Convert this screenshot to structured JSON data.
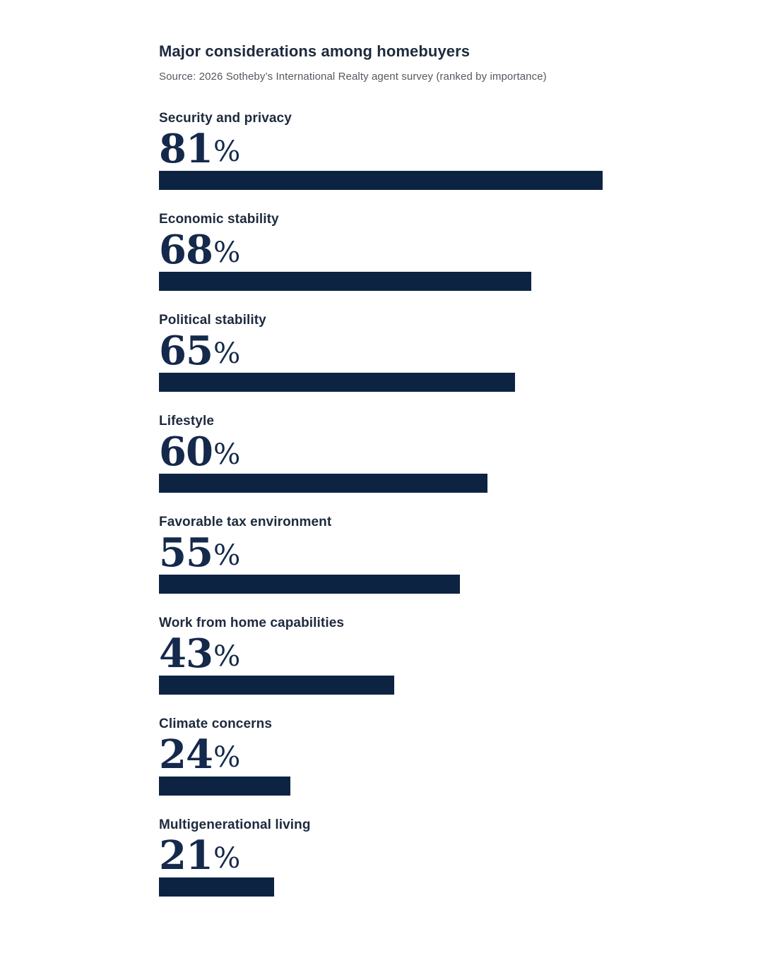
{
  "header": {
    "title": "Major considerations among homebuyers",
    "source": "Source: 2026 Sotheby’s International Realty agent survey (ranked by importance)"
  },
  "chart_data": {
    "type": "bar",
    "orientation": "horizontal",
    "title": "Major considerations among homebuyers",
    "subtitle": "Source: 2026 Sotheby’s International Realty agent survey (ranked by importance)",
    "categories": [
      "Security and privacy",
      "Economic stability",
      "Political stability",
      "Lifestyle",
      "Favorable tax environment",
      "Work from home capabilities",
      "Climate concerns",
      "Multigenerational living"
    ],
    "values": [
      81,
      68,
      65,
      60,
      55,
      43,
      24,
      21
    ],
    "unit": "%",
    "xlim": [
      0,
      100
    ],
    "grid": false,
    "legend": false,
    "value_labels_shown": true,
    "ranked_by": "importance",
    "colors": {
      "bar": "#0d2342",
      "value_text": "#14294b",
      "label_text": "#1e2a3d",
      "source_text": "#55595f",
      "background": "#ffffff"
    }
  }
}
